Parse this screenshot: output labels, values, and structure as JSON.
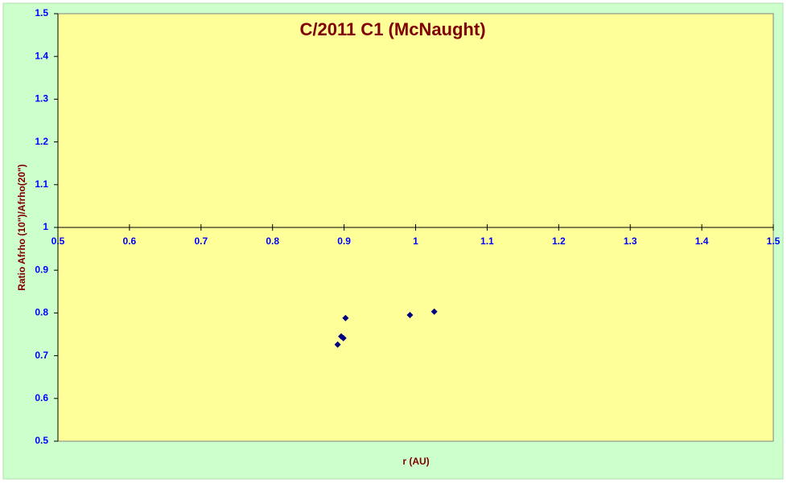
{
  "chart_data": {
    "type": "scatter",
    "title": "C/2011 C1 (McNaught)",
    "x_label": "r (AU)",
    "y_label": "Ratio Afrho (10\")/Afrho(20\")",
    "x": [
      0.891,
      0.896,
      0.899,
      0.902,
      0.992,
      1.026
    ],
    "values": [
      0.726,
      0.745,
      0.741,
      0.788,
      0.795,
      0.803
    ],
    "color": "#000080",
    "xlim": [
      0.5,
      1.5
    ],
    "ylim": [
      0.5,
      1.5
    ],
    "xticks": [
      0.5,
      0.6,
      0.7,
      0.8,
      0.9,
      1,
      1.1,
      1.2,
      1.3,
      1.4,
      1.5
    ],
    "yticks": [
      0.5,
      0.6,
      0.7,
      0.8,
      0.9,
      1,
      1.1,
      1.2,
      1.3,
      1.4,
      1.5
    ],
    "x_axis_crosses": 1,
    "grid": false
  }
}
